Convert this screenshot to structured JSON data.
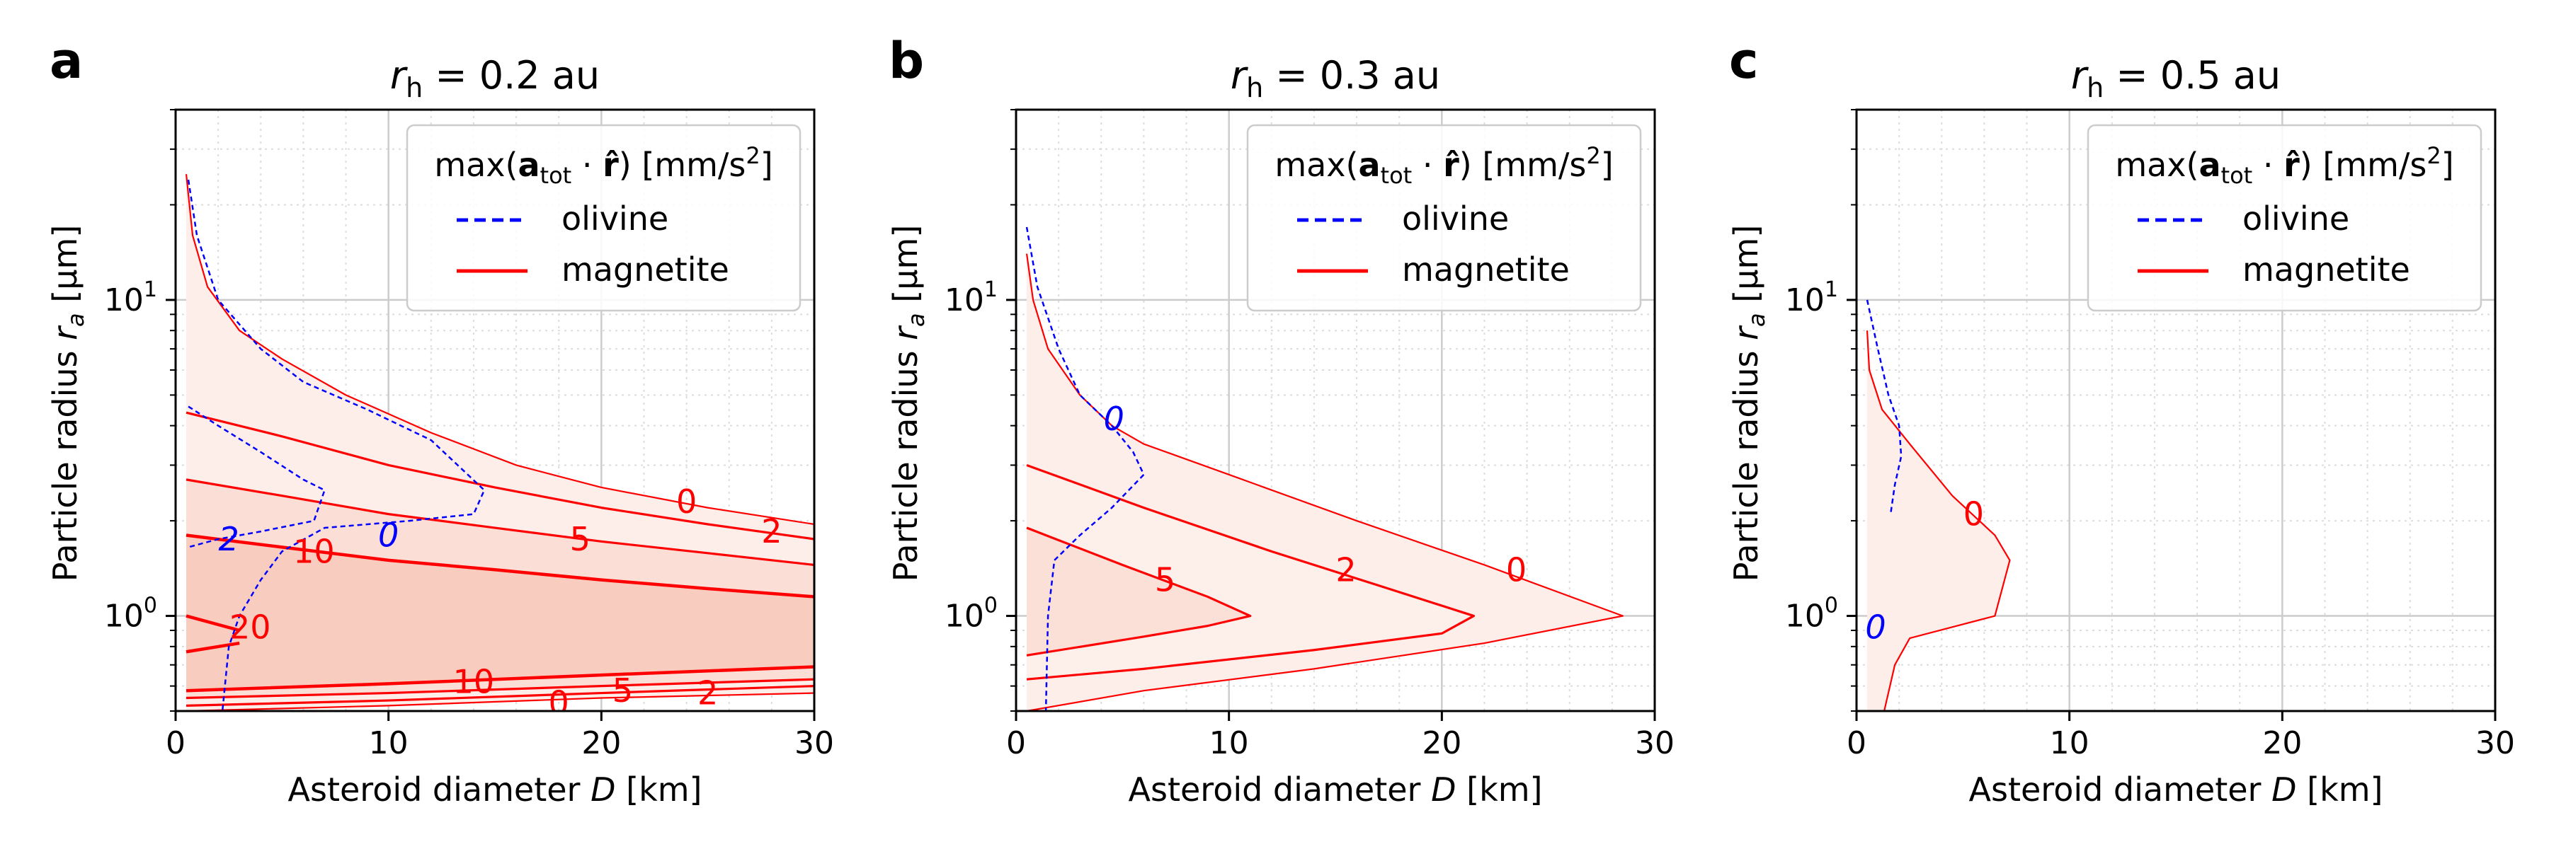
{
  "figure": {
    "legend": {
      "title": "max(a_tot · r̂) [mm/s²]",
      "entries": [
        {
          "name": "olivine",
          "color": "#0000ff",
          "style": "dashed"
        },
        {
          "name": "magnetite",
          "color": "#ff0000",
          "style": "solid"
        }
      ],
      "placement": "top-right"
    },
    "colors": {
      "olivine": "#0000ff",
      "magnetite": "#ff0000",
      "fill_light": "#fdeee9",
      "fill_mid": "#fbded5",
      "fill_dark": "#f8cdbf",
      "grid": "#cccccc"
    }
  },
  "chart_data": [
    {
      "panel": "a",
      "title": "r_h = 0.2 au",
      "type": "contour",
      "xlabel": "Asteroid diameter D [km]",
      "ylabel": "Particle radius r_a [μm]",
      "xlim": [
        0,
        30
      ],
      "ylim": [
        0.5,
        40
      ],
      "yscale": "log",
      "xticks": [
        0,
        10,
        20,
        30
      ],
      "yticks": [
        {
          "value": 1,
          "label": "10^0"
        },
        {
          "value": 10,
          "label": "10^1"
        }
      ],
      "grid": true,
      "series": [
        {
          "material": "magnetite",
          "level": 0,
          "x": [
            0.5,
            0.8,
            1.5,
            3,
            5,
            8,
            12,
            16,
            20,
            25,
            30
          ],
          "y": [
            25,
            16,
            11,
            8,
            6.5,
            5,
            3.8,
            3.0,
            2.55,
            2.2,
            1.95
          ]
        },
        {
          "material": "magnetite",
          "level": 2,
          "x": [
            0.5,
            5,
            10,
            15,
            20,
            25,
            30
          ],
          "y": [
            4.4,
            3.7,
            3.0,
            2.55,
            2.2,
            1.95,
            1.75
          ]
        },
        {
          "material": "magnetite",
          "level": 5,
          "x": [
            0.5,
            5,
            10,
            15,
            20,
            25,
            30
          ],
          "y": [
            2.7,
            2.4,
            2.1,
            1.9,
            1.72,
            1.58,
            1.45
          ]
        },
        {
          "material": "magnetite",
          "level": 10,
          "x": [
            0.5,
            5,
            10,
            15,
            20,
            25,
            30
          ],
          "y": [
            1.8,
            1.65,
            1.5,
            1.4,
            1.3,
            1.22,
            1.15
          ]
        },
        {
          "material": "magnetite",
          "level": 20,
          "x": [
            0.5,
            3
          ],
          "y": [
            1.0,
            0.9
          ]
        },
        {
          "material": "magnetite",
          "level": 20,
          "x": [
            0.5,
            3
          ],
          "y": [
            0.77,
            0.82
          ]
        },
        {
          "material": "magnetite",
          "level": 10,
          "x": [
            0.5,
            10,
            20,
            30
          ],
          "y": [
            0.58,
            0.61,
            0.65,
            0.69
          ]
        },
        {
          "material": "magnetite",
          "level": 5,
          "x": [
            0.5,
            10,
            20,
            30
          ],
          "y": [
            0.55,
            0.57,
            0.6,
            0.63
          ]
        },
        {
          "material": "magnetite",
          "level": 2,
          "x": [
            0.5,
            10,
            20,
            30
          ],
          "y": [
            0.52,
            0.54,
            0.57,
            0.6
          ]
        },
        {
          "material": "magnetite",
          "level": 0,
          "x": [
            0.5,
            10,
            20,
            30
          ],
          "y": [
            0.5,
            0.52,
            0.55,
            0.57
          ]
        },
        {
          "material": "olivine",
          "level": 0,
          "x": [
            0.6,
            1,
            2,
            4,
            6,
            9,
            12,
            14.5,
            14,
            11,
            7,
            5,
            4,
            3,
            2.5,
            2.2
          ],
          "y": [
            24,
            16,
            10,
            7,
            5.5,
            4.5,
            3.6,
            2.5,
            2.1,
            2.0,
            1.9,
            1.6,
            1.3,
            1.0,
            0.8,
            0.5
          ]
        },
        {
          "material": "olivine",
          "level": 2,
          "x": [
            0.6,
            2,
            4,
            6,
            7,
            6.5,
            4,
            2,
            0.6
          ],
          "y": [
            4.6,
            4.0,
            3.3,
            2.7,
            2.5,
            2.0,
            1.85,
            1.75,
            1.65
          ]
        }
      ],
      "labels": [
        {
          "text": "0",
          "color": "magnetite",
          "x": 24,
          "y": 2.3
        },
        {
          "text": "2",
          "color": "magnetite",
          "x": 28,
          "y": 1.85
        },
        {
          "text": "5",
          "color": "magnetite",
          "x": 19,
          "y": 1.75
        },
        {
          "text": "10",
          "color": "magnetite",
          "x": 6.5,
          "y": 1.6
        },
        {
          "text": "20",
          "color": "magnetite",
          "x": 3.5,
          "y": 0.92
        },
        {
          "text": "10",
          "color": "magnetite",
          "x": 14,
          "y": 0.62
        },
        {
          "text": "5",
          "color": "magnetite",
          "x": 21,
          "y": 0.58
        },
        {
          "text": "2",
          "color": "magnetite",
          "x": 25,
          "y": 0.57
        },
        {
          "text": "0",
          "color": "magnetite",
          "x": 18,
          "y": 0.53
        },
        {
          "text": "2",
          "color": "olivine",
          "x": 2.5,
          "y": 1.75
        },
        {
          "text": "0",
          "color": "olivine",
          "x": 10,
          "y": 1.8
        }
      ]
    },
    {
      "panel": "b",
      "title": "r_h = 0.3 au",
      "type": "contour",
      "xlabel": "Asteroid diameter D [km]",
      "ylabel": "Particle radius r_a [μm]",
      "xlim": [
        0,
        30
      ],
      "ylim": [
        0.5,
        40
      ],
      "yscale": "log",
      "xticks": [
        0,
        10,
        20,
        30
      ],
      "yticks": [
        {
          "value": 1,
          "label": "10^0"
        },
        {
          "value": 10,
          "label": "10^1"
        }
      ],
      "grid": true,
      "series": [
        {
          "material": "magnetite",
          "level": 0,
          "x": [
            0.5,
            0.8,
            1.5,
            3,
            4.5,
            6,
            10,
            16,
            22,
            28.5,
            22,
            14,
            6,
            0.5
          ],
          "y": [
            14,
            10,
            7,
            5,
            4,
            3.5,
            2.8,
            2.0,
            1.45,
            1.0,
            0.82,
            0.68,
            0.58,
            0.5
          ]
        },
        {
          "material": "magnetite",
          "level": 2,
          "x": [
            0.5,
            6,
            12,
            17,
            21.5,
            20,
            14,
            6,
            0.5
          ],
          "y": [
            3.0,
            2.2,
            1.6,
            1.25,
            1.0,
            0.88,
            0.78,
            0.68,
            0.63
          ]
        },
        {
          "material": "magnetite",
          "level": 5,
          "x": [
            0.5,
            5,
            9,
            11,
            9,
            6,
            0.5
          ],
          "y": [
            1.9,
            1.45,
            1.15,
            1.0,
            0.93,
            0.86,
            0.75
          ]
        },
        {
          "material": "olivine",
          "level": 0,
          "x": [
            0.5,
            1,
            2,
            3,
            4.5,
            5.5,
            6,
            4.5,
            3,
            1.8,
            1.5,
            1.4
          ],
          "y": [
            17,
            11,
            7,
            5,
            4,
            3.3,
            2.8,
            2.2,
            1.8,
            1.5,
            1.0,
            0.5
          ]
        }
      ],
      "labels": [
        {
          "text": "0",
          "color": "olivine",
          "x": 4.6,
          "y": 4.2
        },
        {
          "text": "0",
          "color": "magnetite",
          "x": 23.5,
          "y": 1.4
        },
        {
          "text": "2",
          "color": "magnetite",
          "x": 15.5,
          "y": 1.4
        },
        {
          "text": "5",
          "color": "magnetite",
          "x": 7,
          "y": 1.3
        }
      ]
    },
    {
      "panel": "c",
      "title": "r_h = 0.5 au",
      "type": "contour",
      "xlabel": "Asteroid diameter D [km]",
      "ylabel": "Particle radius r_a [μm]",
      "xlim": [
        0,
        30
      ],
      "ylim": [
        0.5,
        40
      ],
      "yscale": "log",
      "xticks": [
        0,
        10,
        20,
        30
      ],
      "yticks": [
        {
          "value": 1,
          "label": "10^0"
        },
        {
          "value": 10,
          "label": "10^1"
        }
      ],
      "grid": true,
      "series": [
        {
          "material": "magnetite",
          "level": 0,
          "x": [
            0.5,
            0.6,
            1.2,
            2.5,
            4.5,
            6.5,
            7.2,
            6.5,
            2.5,
            1.8,
            1.3
          ],
          "y": [
            8,
            6,
            4.5,
            3.5,
            2.4,
            1.8,
            1.5,
            1.0,
            0.85,
            0.7,
            0.5
          ]
        },
        {
          "material": "olivine",
          "level": 0,
          "x": [
            0.5,
            1,
            1.5,
            2,
            2.1,
            1.8,
            1.6
          ],
          "y": [
            10,
            7,
            5,
            4,
            3.2,
            2.6,
            2.1
          ]
        }
      ],
      "labels": [
        {
          "text": "0",
          "color": "magnetite",
          "x": 5.5,
          "y": 2.1
        },
        {
          "text": "0",
          "color": "olivine",
          "x": 0.9,
          "y": 0.92
        }
      ]
    }
  ],
  "panels": [
    {
      "letter": "a",
      "title_var": "r",
      "title_sub": "h",
      "title_rest": " = 0.2 au",
      "xlabel_main": "Asteroid diameter ",
      "xlabel_var": "D",
      "xlabel_unit": " [km]",
      "ylabel_main": "Particle radius ",
      "ylabel_var": "r",
      "ylabel_sub": "a",
      "ylabel_unit": " [μm]",
      "xtick_labels": [
        "0",
        "10",
        "20",
        "30"
      ],
      "ytick_base": "10",
      "ytick_exps": [
        "0",
        "1"
      ]
    },
    {
      "letter": "b",
      "title_var": "r",
      "title_sub": "h",
      "title_rest": " = 0.3 au",
      "xlabel_main": "Asteroid diameter ",
      "xlabel_var": "D",
      "xlabel_unit": " [km]",
      "ylabel_main": "Particle radius ",
      "ylabel_var": "r",
      "ylabel_sub": "a",
      "ylabel_unit": " [μm]",
      "xtick_labels": [
        "0",
        "10",
        "20",
        "30"
      ],
      "ytick_base": "10",
      "ytick_exps": [
        "0",
        "1"
      ]
    },
    {
      "letter": "c",
      "title_var": "r",
      "title_sub": "h",
      "title_rest": " = 0.5 au",
      "xlabel_main": "Asteroid diameter ",
      "xlabel_var": "D",
      "xlabel_unit": " [km]",
      "ylabel_main": "Particle radius ",
      "ylabel_var": "r",
      "ylabel_sub": "a",
      "ylabel_unit": " [μm]",
      "xtick_labels": [
        "0",
        "10",
        "20",
        "30"
      ],
      "ytick_base": "10",
      "ytick_exps": [
        "0",
        "1"
      ]
    }
  ],
  "legend_text": {
    "prefix": "max(",
    "bold_a": "a",
    "sub_tot": "tot",
    "dot": " · ",
    "bold_r": "r̂",
    "suffix": ") [mm/s",
    "sup": "2",
    "close": "]"
  }
}
